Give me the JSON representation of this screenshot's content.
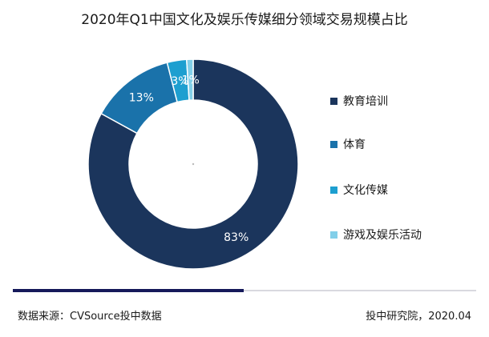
{
  "chart_data": {
    "type": "pie",
    "title": "2020年Q1中国文化及娱乐传媒细分领域交易规模占比",
    "legend_position": "right",
    "series": [
      {
        "name": "教育培训",
        "value": 83,
        "label": "83%",
        "color": "#1b355c"
      },
      {
        "name": "体育",
        "value": 13,
        "label": "13%",
        "color": "#1a72aa"
      },
      {
        "name": "文化传媒",
        "value": 3,
        "label": "3%",
        "color": "#1d9fd0"
      },
      {
        "name": "游戏及娱乐活动",
        "value": 1,
        "label": "1%",
        "color": "#82cfe9"
      }
    ]
  },
  "footer": {
    "source": "数据来源：CVSource投中数据",
    "credit": "投中研究院，2020.04"
  }
}
